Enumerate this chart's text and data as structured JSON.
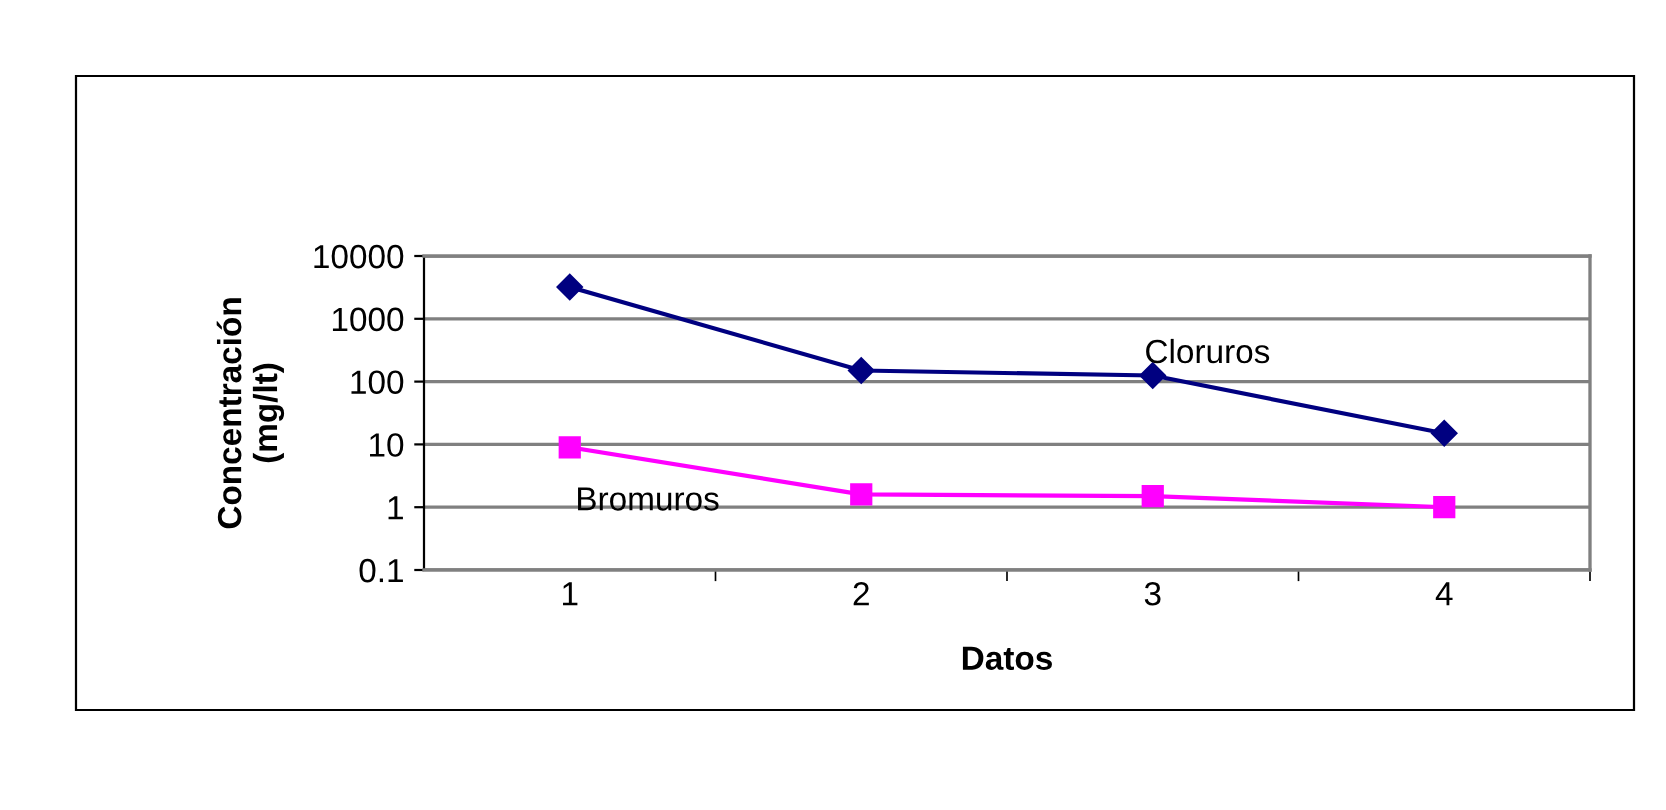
{
  "chart_data": {
    "type": "line",
    "xlabel": "Datos",
    "ylabel": "Concentración\n(mg/lt)",
    "categories": [
      "1",
      "2",
      "3",
      "4"
    ],
    "series": [
      {
        "name": "Cloruros",
        "color": "#000080",
        "marker": "diamond",
        "values": [
          3200,
          150,
          125,
          15
        ]
      },
      {
        "name": "Bromuros",
        "color": "#ff00ff",
        "marker": "square",
        "values": [
          9,
          1.6,
          1.5,
          1.0
        ]
      }
    ],
    "log": true,
    "ylim": [
      0.1,
      10000
    ],
    "yticks": [
      0.1,
      1,
      10,
      100,
      1000,
      10000
    ],
    "grid": "y",
    "legend": false,
    "line_style": "solid"
  }
}
